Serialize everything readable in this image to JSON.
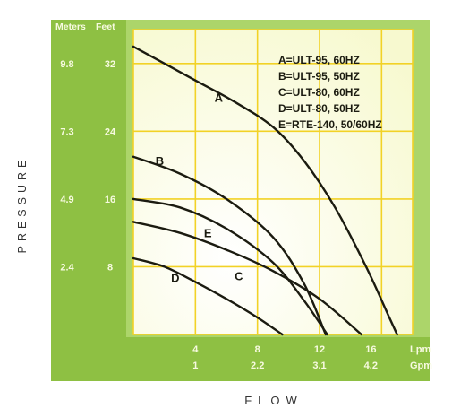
{
  "chart_data": {
    "type": "line",
    "xlabel": "FLOW",
    "ylabel": "PRESSURE",
    "y_units": {
      "meters": "Meters",
      "feet": "Feet"
    },
    "x_units": {
      "lpm": "Lpm",
      "gpm": "Gpm"
    },
    "xlim": [
      0,
      18
    ],
    "ylim": [
      0,
      36
    ],
    "x_ticks": [
      {
        "lpm": 4,
        "lpm_label": "4",
        "gpm_label": "1"
      },
      {
        "lpm": 8,
        "lpm_label": "8",
        "gpm_label": "2.2"
      },
      {
        "lpm": 12,
        "lpm_label": "12",
        "gpm_label": "3.1"
      },
      {
        "lpm": 16,
        "lpm_label": "16",
        "gpm_label": "4.2"
      }
    ],
    "y_ticks": [
      {
        "feet": 8,
        "feet_label": "8",
        "meters_label": "2.4"
      },
      {
        "feet": 16,
        "feet_label": "16",
        "meters_label": "4.9"
      },
      {
        "feet": 24,
        "feet_label": "24",
        "meters_label": "7.3"
      },
      {
        "feet": 32,
        "feet_label": "32",
        "meters_label": "9.8"
      }
    ],
    "grid": true,
    "legend_position": "top-right",
    "legend": [
      "A=ULT-95, 60HZ",
      "B=ULT-95, 50HZ",
      "C=ULT-80, 60HZ",
      "D=ULT-80, 50HZ",
      "E=RTE-140, 50/60HZ"
    ],
    "series": [
      {
        "name": "A",
        "x": [
          0,
          4,
          6.5,
          9,
          11,
          13,
          15,
          16.5,
          17
        ],
        "y": [
          34,
          30,
          27.5,
          24.5,
          20.5,
          15,
          8,
          2,
          0
        ]
      },
      {
        "name": "B",
        "x": [
          0,
          3,
          6,
          9,
          11,
          12.4
        ],
        "y": [
          21,
          19,
          16,
          11.5,
          6,
          0
        ]
      },
      {
        "name": "C",
        "x": [
          0,
          3,
          6,
          9,
          12,
          14.7
        ],
        "y": [
          13.3,
          12,
          10,
          7.5,
          4.2,
          0
        ]
      },
      {
        "name": "D",
        "x": [
          0,
          2,
          4,
          6,
          8,
          9.6
        ],
        "y": [
          9,
          8,
          6.2,
          4.2,
          2,
          0
        ]
      },
      {
        "name": "E",
        "x": [
          0,
          3,
          6,
          9,
          11,
          12.5
        ],
        "y": [
          16,
          15,
          12.5,
          8.5,
          4,
          0
        ]
      }
    ],
    "curve_labels": [
      {
        "series": "A",
        "text": "A",
        "at_x": 5.5,
        "at_y": 27.5
      },
      {
        "series": "B",
        "text": "B",
        "at_x": 1.7,
        "at_y": 20
      },
      {
        "series": "E",
        "text": "E",
        "at_x": 4.8,
        "at_y": 11.5
      },
      {
        "series": "C",
        "text": "C",
        "at_x": 6.8,
        "at_y": 6.4
      },
      {
        "series": "D",
        "text": "D",
        "at_x": 2.7,
        "at_y": 6.2
      }
    ],
    "colors": {
      "outer_band": "#8ec043",
      "inner_band": "#acd56a",
      "plot_background": "#fbfce0",
      "grid": "#f2d226",
      "curves": "#1b1b10",
      "tick_text": "#f7fae0",
      "axis_title": "#333333"
    }
  }
}
